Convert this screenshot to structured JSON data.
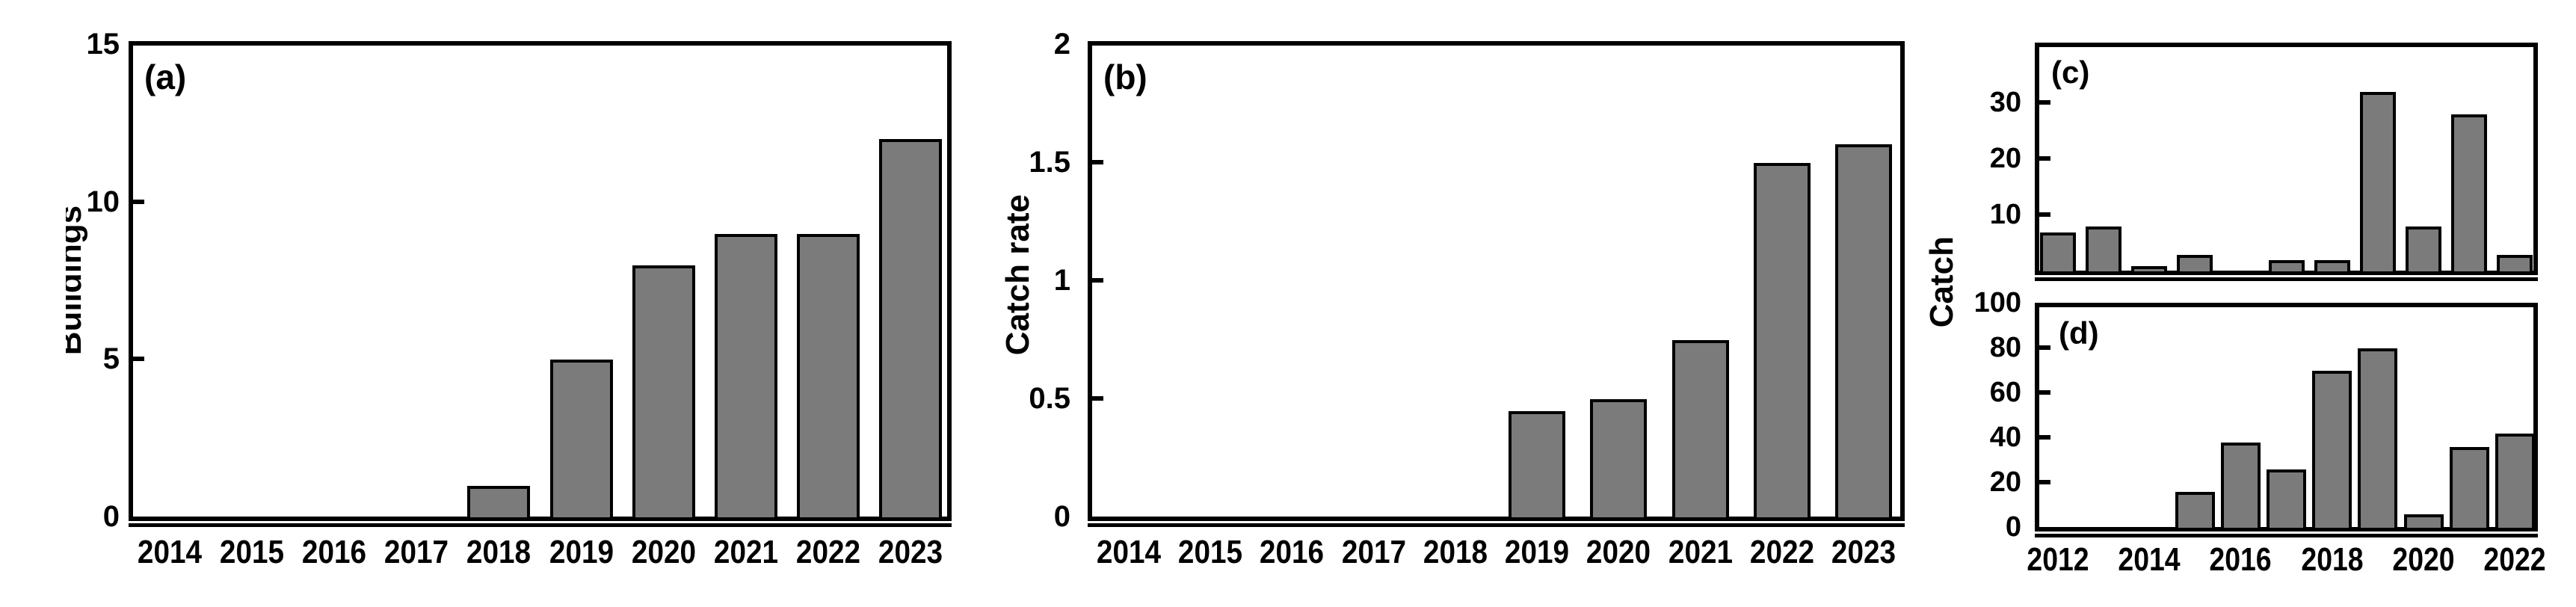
{
  "colors": {
    "background": "#ffffff",
    "bar_fill": "#7b7b7b",
    "bar_stroke": "#000000",
    "axis": "#000000",
    "text": "#000000"
  },
  "right_block": {
    "ylabel": "Catch"
  },
  "chart_data": [
    {
      "id": "a",
      "type": "bar",
      "panel_label": "(a)",
      "ylabel": "Buildings",
      "xlabel": "",
      "ylim": [
        0,
        15
      ],
      "yticks": [
        0,
        5,
        10,
        15
      ],
      "ytick_labels": [
        "0",
        "5",
        "10",
        "15"
      ],
      "categories": [
        "2014",
        "2015",
        "2016",
        "2017",
        "2018",
        "2019",
        "2020",
        "2021",
        "2022",
        "2023"
      ],
      "values": [
        0,
        0,
        0,
        0,
        1,
        5,
        8,
        9,
        9,
        12
      ],
      "xtick_labels": [
        "2014",
        "2015",
        "2016",
        "2017",
        "2018",
        "2019",
        "2020",
        "2021",
        "2022",
        "2023"
      ],
      "grid": false,
      "legend": null
    },
    {
      "id": "b",
      "type": "bar",
      "panel_label": "(b)",
      "ylabel": "Catch rate",
      "xlabel": "",
      "ylim": [
        0,
        2
      ],
      "yticks": [
        0,
        0.5,
        1,
        1.5,
        2
      ],
      "ytick_labels": [
        "0",
        "0.5",
        "1",
        "1.5",
        "2"
      ],
      "categories": [
        "2014",
        "2015",
        "2016",
        "2017",
        "2018",
        "2019",
        "2020",
        "2021",
        "2022",
        "2023"
      ],
      "values": [
        0,
        0,
        0,
        0,
        0,
        0.45,
        0.5,
        0.75,
        1.5,
        1.58
      ],
      "xtick_labels": [
        "2014",
        "2015",
        "2016",
        "2017",
        "2018",
        "2019",
        "2020",
        "2021",
        "2022",
        "2023"
      ],
      "grid": false,
      "legend": null
    },
    {
      "id": "c",
      "type": "bar",
      "panel_label": "(c)",
      "ylabel": null,
      "xlabel": "",
      "ylim": [
        0,
        40
      ],
      "yticks": [
        10,
        20,
        30
      ],
      "ytick_labels": [
        "10",
        "20",
        "30"
      ],
      "categories": [
        "2012",
        "2013",
        "2014",
        "2015",
        "2016",
        "2017",
        "2018",
        "2019",
        "2020",
        "2021",
        "2022"
      ],
      "values": [
        7,
        8,
        1,
        3,
        0,
        2,
        2,
        32,
        8,
        28,
        3
      ],
      "xtick_labels": [],
      "grid": false,
      "legend": null
    },
    {
      "id": "d",
      "type": "bar",
      "panel_label": "(d)",
      "ylabel": null,
      "xlabel": "",
      "ylim": [
        0,
        100
      ],
      "yticks": [
        0,
        20,
        40,
        60,
        80,
        100
      ],
      "ytick_labels": [
        "0",
        "20",
        "40",
        "60",
        "80",
        "100"
      ],
      "categories": [
        "2012",
        "2013",
        "2014",
        "2015",
        "2016",
        "2017",
        "2018",
        "2019",
        "2020",
        "2021",
        "2022"
      ],
      "values": [
        0,
        0,
        0,
        16,
        38,
        26,
        70,
        80,
        6,
        36,
        42
      ],
      "xtick_labels": [
        "2012",
        "2014",
        "2016",
        "2018",
        "2020",
        "2022"
      ],
      "grid": false,
      "legend": null
    }
  ]
}
